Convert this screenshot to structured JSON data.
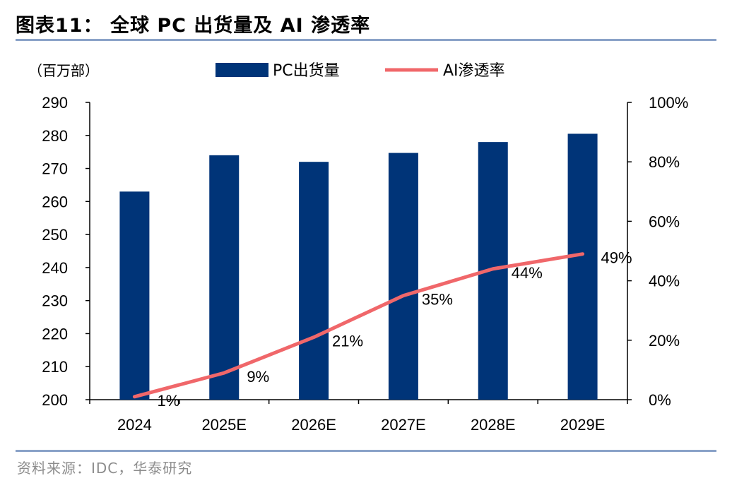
{
  "header": {
    "title": "图表11：  全球 PC 出货量及 AI 渗透率"
  },
  "footer": {
    "source": "资料来源：IDC，华泰研究"
  },
  "colors": {
    "bar": "#003478",
    "line": "#f0676a",
    "rule": "#8aa2c8"
  },
  "chart_data": {
    "type": "bar+line",
    "unit_label": "（百万部）",
    "categories": [
      "2024",
      "2025E",
      "2026E",
      "2027E",
      "2028E",
      "2029E"
    ],
    "series": [
      {
        "name": "PC出货量",
        "type": "bar",
        "axis": "left",
        "values": [
          263,
          274,
          272,
          274.7,
          278,
          280.5
        ]
      },
      {
        "name": "AI渗透率",
        "type": "line",
        "axis": "right",
        "values": [
          1,
          9,
          21,
          35,
          44,
          49
        ],
        "labels": [
          "1%",
          "9%",
          "21%",
          "35%",
          "44%",
          "49%"
        ]
      }
    ],
    "y_left": {
      "min": 200,
      "max": 290,
      "step": 10,
      "ticks": [
        "200",
        "210",
        "220",
        "230",
        "240",
        "250",
        "260",
        "270",
        "280",
        "290"
      ]
    },
    "y_right": {
      "min": 0,
      "max": 100,
      "step": 20,
      "ticks": [
        "0%",
        "20%",
        "40%",
        "60%",
        "80%",
        "100%"
      ]
    },
    "legend_position": "top-center",
    "grid": false
  }
}
